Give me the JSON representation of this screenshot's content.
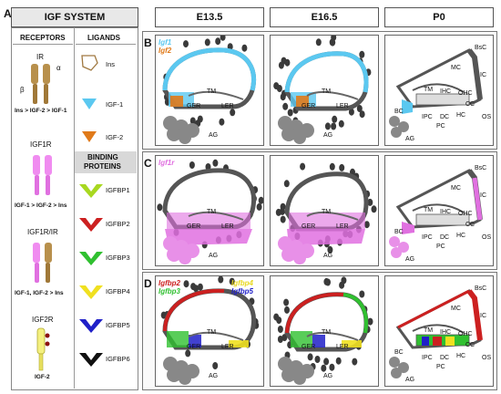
{
  "panel_a": {
    "letter": "A",
    "title": "IGF SYSTEM",
    "receptors_header": "RECEPTORS",
    "ligands_header": "LIGANDS",
    "receptors": [
      {
        "name": "IR",
        "affinity": "Ins > IGF-2 > IGF-1",
        "alpha": "α",
        "beta": "β"
      },
      {
        "name": "IGF1R",
        "affinity": "IGF-1 > IGF-2 > Ins"
      },
      {
        "name": "IGF1R/IR",
        "affinity": "IGF-1, IGF-2 > Ins"
      },
      {
        "name": "IGF2R",
        "affinity": "IGF-2"
      }
    ],
    "ligands": [
      {
        "name": "Ins",
        "color": "#a07840"
      },
      {
        "name": "IGF-1",
        "color": "#5bc8f0"
      },
      {
        "name": "IGF-2",
        "color": "#e07a1a"
      }
    ],
    "binding_header_1": "BINDING",
    "binding_header_2": "PROTEINS",
    "binding_proteins": [
      {
        "name": "IGFBP1",
        "color": "#a8d820"
      },
      {
        "name": "IGFBP2",
        "color": "#cc2020"
      },
      {
        "name": "IGFBP3",
        "color": "#30c030"
      },
      {
        "name": "IGFBP4",
        "color": "#f0e020"
      },
      {
        "name": "IGFBP5",
        "color": "#2020c8"
      },
      {
        "name": "IGFBP6",
        "color": "#101010"
      }
    ]
  },
  "columns": [
    "E13.5",
    "E16.5",
    "P0"
  ],
  "rows": [
    {
      "letter": "B",
      "genes": [
        {
          "text": "Igf1",
          "color": "#5bc8f0"
        },
        {
          "text": "Igf2",
          "color": "#e07a1a"
        }
      ]
    },
    {
      "letter": "C",
      "genes": [
        {
          "text": "Igf1r",
          "color": "#e070e0"
        }
      ]
    },
    {
      "letter": "D",
      "genes": [
        {
          "text": "Igfbp2",
          "color": "#cc2020"
        },
        {
          "text": "Igfbp3",
          "color": "#30c030"
        },
        {
          "text": "Igfbp4",
          "color": "#e8d820"
        },
        {
          "text": "Igfbp5",
          "color": "#2020c8"
        }
      ]
    }
  ],
  "structures": {
    "TM": "TM",
    "GER": "GER",
    "LER": "LER",
    "AG": "AG",
    "BsC": "BsC",
    "MC": "MC",
    "IC": "IC",
    "IHC": "IHC",
    "OHC": "OHC",
    "CC": "CC",
    "HC": "HC",
    "OS": "OS",
    "BC": "BC",
    "IPC": "IPC",
    "DC": "DC",
    "PC": "PC"
  }
}
